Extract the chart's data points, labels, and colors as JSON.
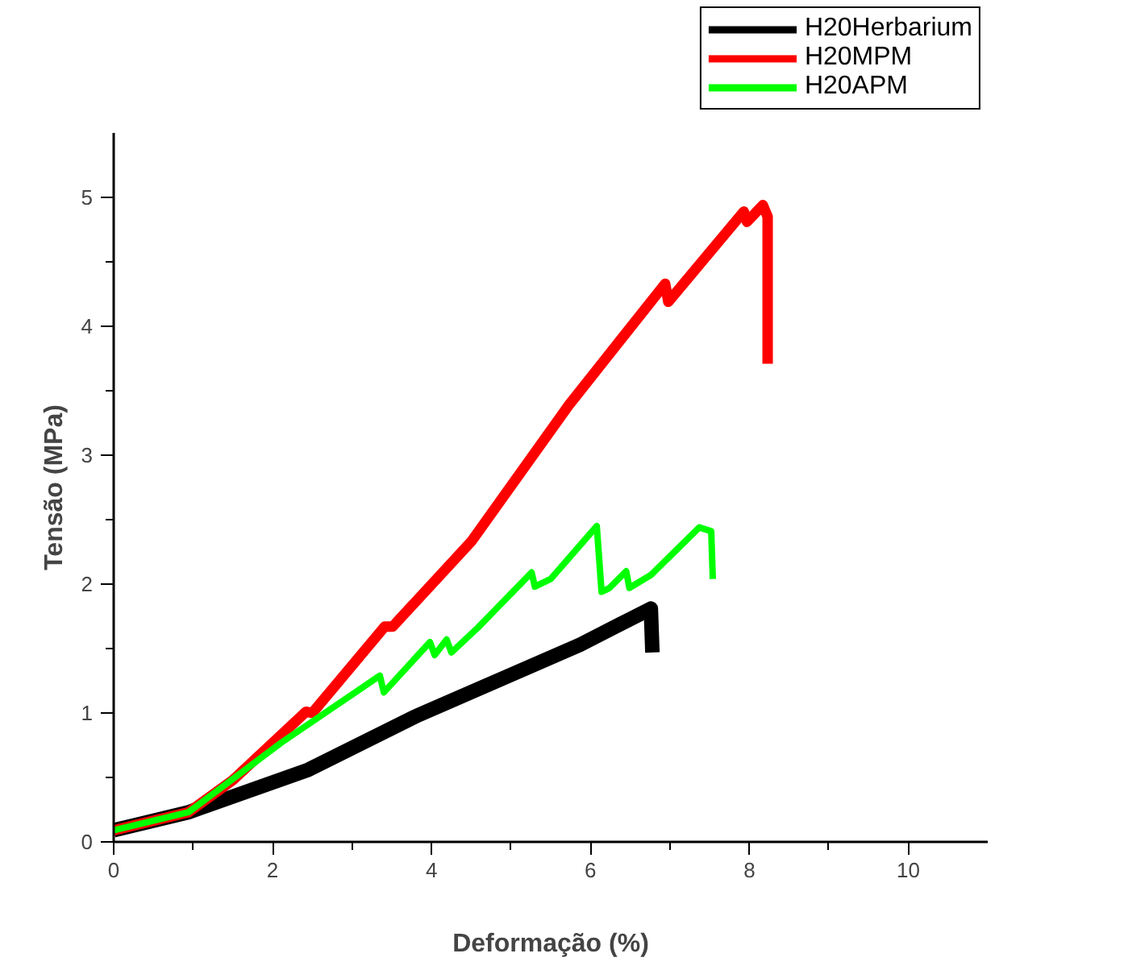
{
  "chart_data": {
    "type": "line",
    "xlabel": "Deformação (%)",
    "ylabel": "Tensão (MPa)",
    "xlim": [
      0,
      11
    ],
    "ylim": [
      0,
      5.5
    ],
    "xticks": [
      0,
      {
        "value": 1,
        "label": null
      },
      2,
      {
        "value": 3,
        "label": null
      },
      4,
      {
        "value": 5,
        "label": null
      },
      6,
      {
        "value": 7,
        "label": null
      },
      8,
      {
        "value": 9,
        "label": null
      },
      10
    ],
    "yticks": [
      0,
      {
        "value": 0.5,
        "label": null
      },
      1,
      {
        "value": 1.5,
        "label": null
      },
      2,
      {
        "value": 2.5,
        "label": null
      },
      3,
      {
        "value": 3.5,
        "label": null
      },
      4,
      {
        "value": 4.5,
        "label": null
      },
      5
    ],
    "grid": false,
    "legend": "top right",
    "line_style": "solid",
    "marker": "none",
    "series": [
      {
        "name": "H20Herbarium",
        "color": "#000000",
        "x": [
          0,
          0.94,
          2.45,
          3.82,
          5.87,
          6.76,
          6.78
        ],
        "values": [
          0.09,
          0.23,
          0.56,
          0.98,
          1.53,
          1.81,
          1.47
        ]
      },
      {
        "name": "H20MPM",
        "color": "#ff0000",
        "x": [
          0,
          0.94,
          1.5,
          2.42,
          2.5,
          3.41,
          3.51,
          4.5,
          5.73,
          6.94,
          6.98,
          7.93,
          7.97,
          8.17,
          8.23,
          8.23
        ],
        "values": [
          0.09,
          0.23,
          0.48,
          1.01,
          1.0,
          1.67,
          1.67,
          2.33,
          3.39,
          4.33,
          4.19,
          4.89,
          4.81,
          4.94,
          4.85,
          3.71
        ]
      },
      {
        "name": "H20APM",
        "color": "#00ff00",
        "x": [
          0,
          0.94,
          2.11,
          3.35,
          3.4,
          3.98,
          4.04,
          4.19,
          4.25,
          4.58,
          5.26,
          5.3,
          5.5,
          6.08,
          6.14,
          6.24,
          6.45,
          6.49,
          6.76,
          7.37,
          7.52,
          7.54
        ],
        "values": [
          0.09,
          0.23,
          0.77,
          1.29,
          1.16,
          1.55,
          1.45,
          1.57,
          1.47,
          1.66,
          2.09,
          1.98,
          2.04,
          2.45,
          1.94,
          1.97,
          2.1,
          1.97,
          2.07,
          2.44,
          2.41,
          2.04
        ]
      }
    ]
  }
}
